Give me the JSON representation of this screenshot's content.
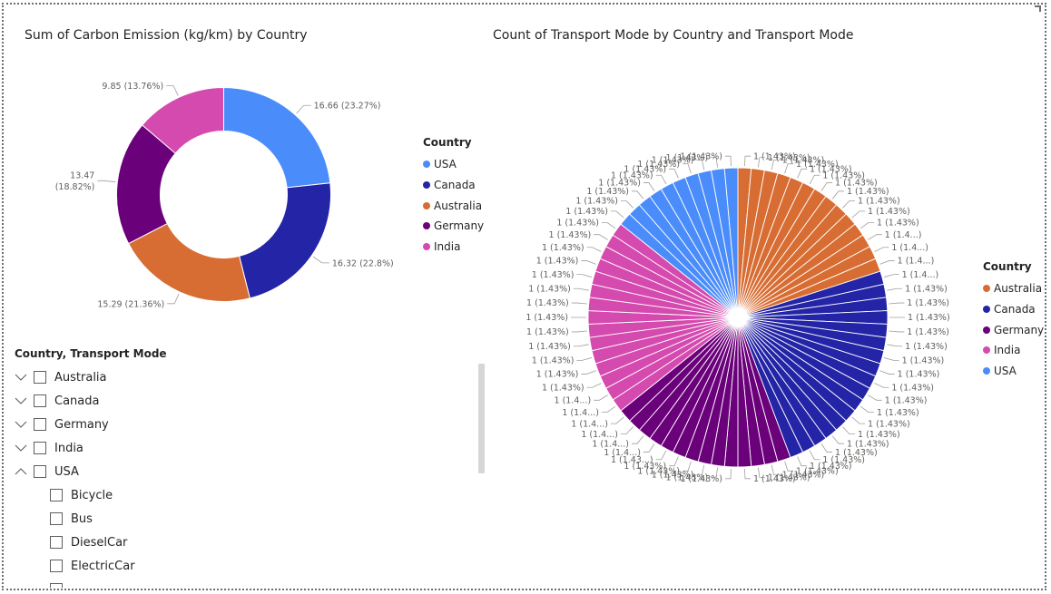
{
  "donut": {
    "title": "Sum of Carbon Emission (kg/km) by Country",
    "legend_title": "Country",
    "legend": [
      {
        "name": "USA",
        "color": "#4A8DFA"
      },
      {
        "name": "Canada",
        "color": "#2424A6"
      },
      {
        "name": "Australia",
        "color": "#D86D33"
      },
      {
        "name": "Germany",
        "color": "#6B007B"
      },
      {
        "name": "India",
        "color": "#D54AAE"
      }
    ]
  },
  "pie": {
    "title": "Count of Transport Mode by Country and Transport Mode",
    "legend_title": "Country",
    "legend": [
      {
        "name": "Australia",
        "color": "#D86D33"
      },
      {
        "name": "Canada",
        "color": "#2424A6"
      },
      {
        "name": "Germany",
        "color": "#6B007B"
      },
      {
        "name": "India",
        "color": "#D54AAE"
      },
      {
        "name": "USA",
        "color": "#4A8DFA"
      }
    ]
  },
  "chart_data": [
    {
      "type": "pie",
      "subtype": "donut",
      "title": "Sum of Carbon Emission (kg/km) by Country",
      "legend_position": "right",
      "slices": [
        {
          "name": "USA",
          "value": 16.66,
          "label": "16.66 (23.27%)",
          "color": "#4A8DFA"
        },
        {
          "name": "Canada",
          "value": 16.32,
          "label": "16.32 (22.8%)",
          "color": "#2424A6"
        },
        {
          "name": "Australia",
          "value": 15.29,
          "label": "15.29 (21.36%)",
          "color": "#D86D33"
        },
        {
          "name": "Germany",
          "value": 13.47,
          "label": "13.47 (18.82%)",
          "color": "#6B007B"
        },
        {
          "name": "India",
          "value": 9.85,
          "label": "9.85 (13.76%)",
          "color": "#D54AAE"
        }
      ]
    },
    {
      "type": "pie",
      "title": "Count of Transport Mode by Country and Transport Mode",
      "legend_position": "right",
      "slice_value": 1,
      "slice_percent": "1.43%",
      "groups": [
        {
          "name": "Australia",
          "count": 14,
          "color": "#D86D33"
        },
        {
          "name": "Canada",
          "count": 17,
          "color": "#2424A6"
        },
        {
          "name": "Germany",
          "count": 14,
          "color": "#6B007B"
        },
        {
          "name": "India",
          "count": 15,
          "color": "#D54AAE"
        },
        {
          "name": "USA",
          "count": 10,
          "color": "#4A8DFA"
        }
      ],
      "labels": [
        "1 (1.43%)",
        "1 (1.43%)",
        "1 (1.43%)",
        "1 (1.43%)",
        "1 (1.43%)",
        "1 (1.43%)",
        "1 (1.43%)",
        "1 (1.43%)",
        "1 (1.43%)",
        "1 (1.43%)",
        "1 (1.43%)",
        "1 (1.4...)",
        "1 (1.4...)",
        "1 (1.4...)",
        "1 (1.4...)",
        "1 (1.43%)",
        "1 (1.43%)",
        "1 (1.43%)",
        "1 (1.43%)",
        "1 (1.43%)",
        "1 (1.43%)",
        "1 (1.43%)",
        "1 (1.43%)",
        "1 (1.43%)",
        "1 (1.43%)",
        "1 (1.43%)",
        "1 (1.43%)",
        "1 (1.43%)",
        "1 (1.43%)",
        "1 (1.43%)",
        "1 (1.43%)",
        "1 (1.43%)",
        "1 (1.43%)",
        "1 (1.43%)",
        "1 (1.43%)",
        "1 (1.43%)",
        "1 (1.43%)",
        "1 (1.43%)",
        "1 (1.43%)",
        "1 (1.43%)",
        "1 (1.43...)",
        "1 (1.4...)",
        "1 (1.4...)",
        "1 (1.4...)",
        "1 (1.4...)",
        "1 (1.4...)",
        "1 (1.4...)",
        "1 (1.43%)",
        "1 (1.43%)",
        "1 (1.43%)",
        "1 (1.43%)",
        "1 (1.43%)",
        "1 (1.43%)",
        "1 (1.43%)",
        "1 (1.43%)",
        "1 (1.43%)",
        "1 (1.43%)",
        "1 (1.43%)",
        "1 (1.43%)",
        "1 (1.43%)",
        "1 (1.43%)",
        "1 (1.43%)",
        "1 (1.43%)",
        "1 (1.43%)",
        "1 (1.43%)",
        "1 (1.43%)",
        "1 (1.43%)",
        "1 (1.43%)",
        "1 (1.43%)",
        "1 (1.43%)"
      ]
    }
  ],
  "slicer": {
    "header": "Country, Transport Mode",
    "items": [
      {
        "label": "Australia",
        "expanded": false
      },
      {
        "label": "Canada",
        "expanded": false
      },
      {
        "label": "Germany",
        "expanded": false
      },
      {
        "label": "India",
        "expanded": false
      },
      {
        "label": "USA",
        "expanded": true
      }
    ],
    "children": [
      "Bicycle",
      "Bus",
      "DieselCar",
      "ElectricCar"
    ]
  }
}
